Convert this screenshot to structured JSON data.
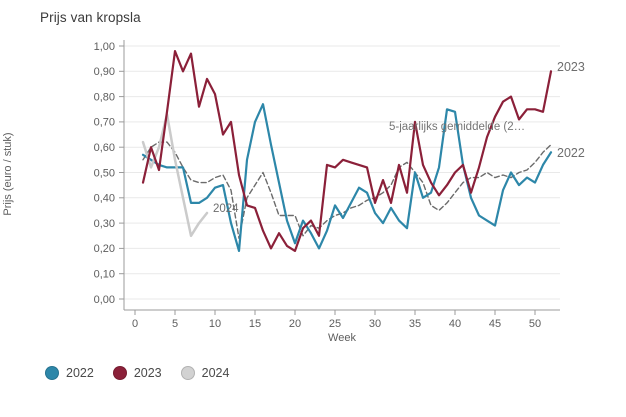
{
  "title": "Prijs van kropsla",
  "annotations": {
    "avg_label": "5-jaarlijks gemiddelde (2…",
    "label_2023": "2023",
    "label_2022": "2022",
    "label_2024": "2024"
  },
  "legend": {
    "items": [
      {
        "label": "2022",
        "color": "#2d87a9"
      },
      {
        "label": "2023",
        "color": "#8b2039"
      },
      {
        "label": "2024",
        "color": "#d2d2d2"
      }
    ]
  },
  "chart_data": {
    "type": "line",
    "title": "Prijs van kropsla",
    "xlabel": "Week",
    "ylabel": "Prijs (euro / stuk)",
    "xlim": [
      0,
      53
    ],
    "ylim": [
      0,
      1.0
    ],
    "grid": "horizontal",
    "legend_position": "bottom-left",
    "x_unit": "week",
    "y_ticks": [
      {
        "v": 1.0,
        "label": "1,00"
      },
      {
        "v": 0.9,
        "label": "0,90"
      },
      {
        "v": 0.8,
        "label": "0,80"
      },
      {
        "v": 0.7,
        "label": "0,70"
      },
      {
        "v": 0.6,
        "label": "0,60"
      },
      {
        "v": 0.5,
        "label": "0,50"
      },
      {
        "v": 0.4,
        "label": "0,40"
      },
      {
        "v": 0.3,
        "label": "0,30"
      },
      {
        "v": 0.2,
        "label": "0,20"
      },
      {
        "v": 0.1,
        "label": "0,10"
      },
      {
        "v": 0.0,
        "label": "0,00"
      }
    ],
    "x_ticks": [
      {
        "v": 0,
        "label": "0"
      },
      {
        "v": 5,
        "label": "5"
      },
      {
        "v": 10,
        "label": "10"
      },
      {
        "v": 15,
        "label": "15"
      },
      {
        "v": 20,
        "label": "20"
      },
      {
        "v": 25,
        "label": "25"
      },
      {
        "v": 30,
        "label": "30"
      },
      {
        "v": 35,
        "label": "35"
      },
      {
        "v": 40,
        "label": "40"
      },
      {
        "v": 45,
        "label": "45"
      },
      {
        "v": 50,
        "label": "50"
      }
    ],
    "series": [
      {
        "id": "avg",
        "name": "5-jaarlijks gemiddelde",
        "color": "#6b6b6b",
        "width": 1.4,
        "dash": "5,3",
        "start_week": 1,
        "values": [
          0.55,
          0.6,
          0.62,
          0.62,
          0.58,
          0.52,
          0.47,
          0.46,
          0.46,
          0.48,
          0.49,
          0.43,
          0.24,
          0.4,
          0.45,
          0.5,
          0.42,
          0.33,
          0.33,
          0.33,
          0.25,
          0.29,
          0.28,
          0.31,
          0.33,
          0.34,
          0.36,
          0.37,
          0.39,
          0.4,
          0.42,
          0.45,
          0.52,
          0.54,
          0.5,
          0.46,
          0.37,
          0.35,
          0.38,
          0.42,
          0.46,
          0.48,
          0.48,
          0.5,
          0.48,
          0.49,
          0.48,
          0.5,
          0.51,
          0.54,
          0.58,
          0.61
        ]
      },
      {
        "id": "2022",
        "name": "2022",
        "color": "#2d87a9",
        "width": 2.2,
        "dash": null,
        "start_week": 1,
        "values": [
          0.57,
          0.55,
          0.53,
          0.52,
          0.52,
          0.52,
          0.38,
          0.38,
          0.4,
          0.44,
          0.45,
          0.3,
          0.19,
          0.55,
          0.7,
          0.77,
          0.61,
          0.46,
          0.31,
          0.22,
          0.31,
          0.26,
          0.2,
          0.27,
          0.37,
          0.32,
          0.38,
          0.44,
          0.42,
          0.34,
          0.3,
          0.36,
          0.31,
          0.28,
          0.5,
          0.4,
          0.42,
          0.52,
          0.75,
          0.74,
          0.53,
          0.4,
          0.33,
          0.31,
          0.29,
          0.43,
          0.5,
          0.45,
          0.48,
          0.46,
          0.53,
          0.58
        ]
      },
      {
        "id": "2024",
        "name": "2024",
        "color": "#cbcbcb",
        "width": 2.5,
        "dash": null,
        "start_week": 1,
        "values": [
          0.62,
          0.52,
          0.6,
          0.73,
          0.55,
          0.4,
          0.25,
          0.3,
          0.34
        ]
      },
      {
        "id": "2023",
        "name": "2023",
        "color": "#8b2039",
        "width": 2.2,
        "dash": null,
        "start_week": 1,
        "values": [
          0.46,
          0.6,
          0.51,
          0.74,
          0.98,
          0.9,
          0.97,
          0.76,
          0.87,
          0.81,
          0.65,
          0.7,
          0.49,
          0.37,
          0.36,
          0.27,
          0.2,
          0.26,
          0.21,
          0.19,
          0.28,
          0.31,
          0.25,
          0.53,
          0.52,
          0.55,
          0.54,
          0.53,
          0.52,
          0.38,
          0.47,
          0.38,
          0.53,
          0.42,
          0.7,
          0.53,
          0.46,
          0.41,
          0.45,
          0.5,
          0.53,
          0.42,
          0.52,
          0.64,
          0.72,
          0.78,
          0.8,
          0.71,
          0.75,
          0.75,
          0.74,
          0.9
        ]
      }
    ]
  }
}
